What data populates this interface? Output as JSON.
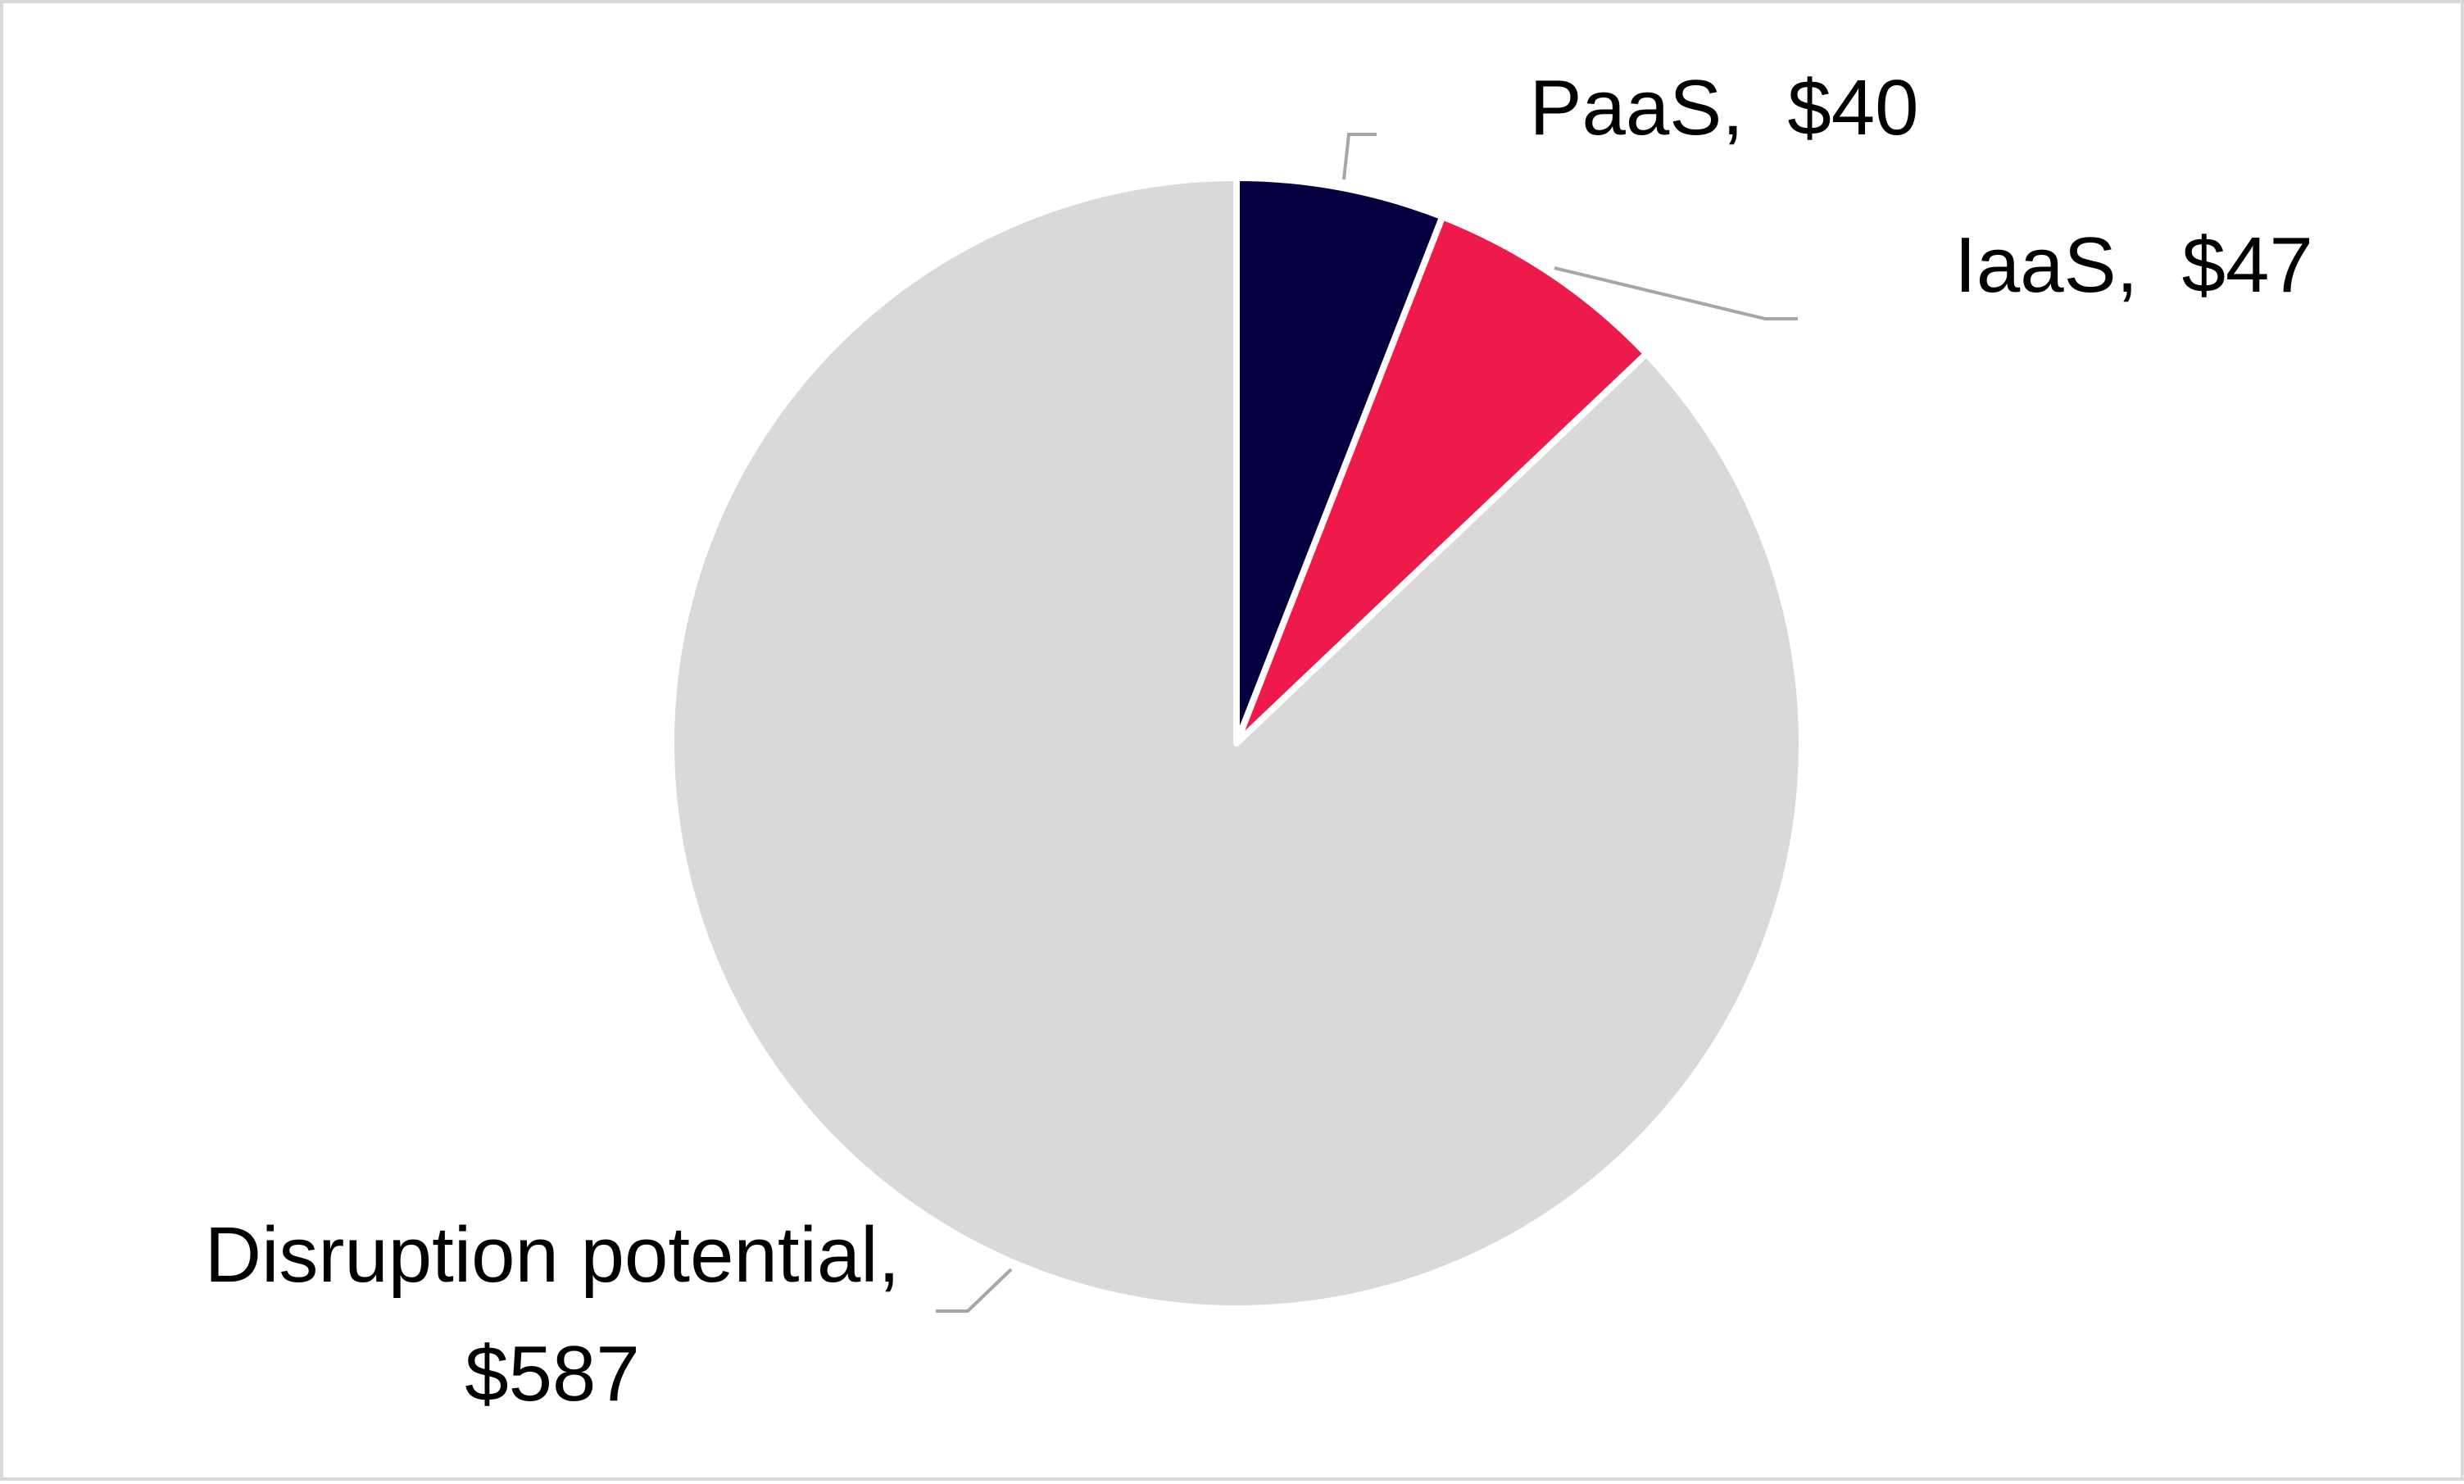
{
  "chart_data": {
    "type": "pie",
    "slices": [
      {
        "label": "PaaS",
        "value": 40,
        "display": "$40",
        "color": "#05003f"
      },
      {
        "label": "IaaS",
        "value": 47,
        "display": "$47",
        "color": "#ee1a4a"
      },
      {
        "label": "Disruption potential",
        "value": 587,
        "display": "$587",
        "color": "#d9d9d9"
      }
    ],
    "data_labels": [
      {
        "text": "PaaS,  $40"
      },
      {
        "text": "IaaS,  $47"
      },
      {
        "text": "Disruption potential,"
      },
      {
        "text": "$587"
      }
    ],
    "legend": "none",
    "leader_line_color": "#a6a6a6",
    "slice_border_color": "#ffffff"
  }
}
